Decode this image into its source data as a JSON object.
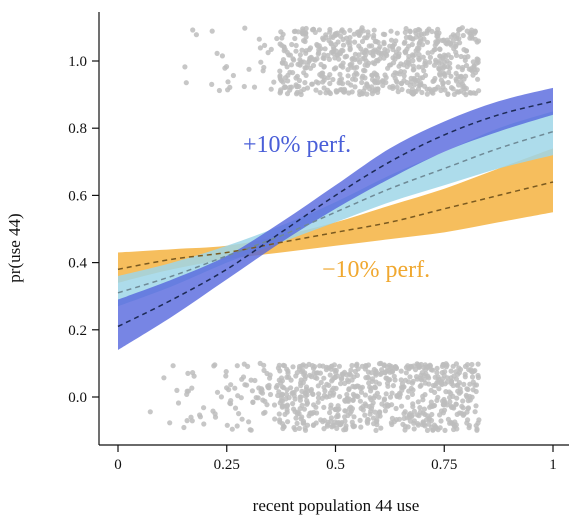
{
  "chart_data": {
    "type": "area",
    "title": "",
    "xlabel": "recent population 44 use",
    "ylabel": "pr(use 44)",
    "xlim": [
      -0.04,
      1.0
    ],
    "ylim": [
      -0.14,
      1.13
    ],
    "x_ticks": [
      0,
      0.25,
      0.5,
      0.75,
      1
    ],
    "x_tick_labels": [
      "0",
      "0.25",
      "0.5",
      "0.75",
      "1"
    ],
    "y_ticks": [
      0.0,
      0.2,
      0.4,
      0.6,
      0.8,
      1.0
    ],
    "y_tick_labels": [
      "0.0",
      "0.2",
      "0.4",
      "0.6",
      "0.8",
      "1.0"
    ],
    "grid": false,
    "series": [
      {
        "name": "",
        "color": "#f5b341",
        "x": [
          0,
          0.125,
          0.25,
          0.375,
          0.5,
          0.625,
          0.75,
          0.875,
          1
        ],
        "mean": [
          0.38,
          0.41,
          0.43,
          0.46,
          0.49,
          0.52,
          0.56,
          0.6,
          0.64
        ],
        "lower": [
          0.34,
          0.38,
          0.41,
          0.43,
          0.45,
          0.47,
          0.49,
          0.52,
          0.55
        ],
        "upper": [
          0.43,
          0.44,
          0.45,
          0.48,
          0.52,
          0.57,
          0.62,
          0.68,
          0.74
        ]
      },
      {
        "name": "",
        "color": "#9fd6e8",
        "x": [
          0,
          0.125,
          0.25,
          0.375,
          0.5,
          0.625,
          0.75,
          0.875,
          1
        ],
        "mean": [
          0.31,
          0.36,
          0.42,
          0.48,
          0.55,
          0.62,
          0.68,
          0.74,
          0.79
        ],
        "lower": [
          0.27,
          0.33,
          0.4,
          0.46,
          0.52,
          0.58,
          0.63,
          0.68,
          0.72
        ],
        "upper": [
          0.36,
          0.4,
          0.45,
          0.51,
          0.58,
          0.66,
          0.73,
          0.8,
          0.85
        ]
      },
      {
        "name": "",
        "color": "#5566dd",
        "x": [
          0,
          0.125,
          0.25,
          0.375,
          0.5,
          0.625,
          0.75,
          0.875,
          1
        ],
        "mean": [
          0.21,
          0.29,
          0.38,
          0.49,
          0.6,
          0.7,
          0.78,
          0.84,
          0.88
        ],
        "lower": [
          0.14,
          0.24,
          0.35,
          0.46,
          0.56,
          0.65,
          0.73,
          0.79,
          0.84
        ],
        "upper": [
          0.29,
          0.35,
          0.42,
          0.52,
          0.63,
          0.74,
          0.82,
          0.88,
          0.92
        ]
      }
    ],
    "labels": {
      "high": {
        "text": "+10% perf.",
        "color": "#4a5fd8"
      },
      "low": {
        "text": "−10% perf.",
        "color": "#f0a830"
      }
    },
    "jitter": {
      "color": "#bdbdbd",
      "rows": [
        {
          "y_center": 1.0,
          "y_spread": 0.1
        },
        {
          "y_center": 0.0,
          "y_spread": 0.1
        }
      ],
      "dense_range": [
        0.37,
        0.83
      ],
      "sparse_range": [
        0.07,
        0.37
      ]
    }
  }
}
